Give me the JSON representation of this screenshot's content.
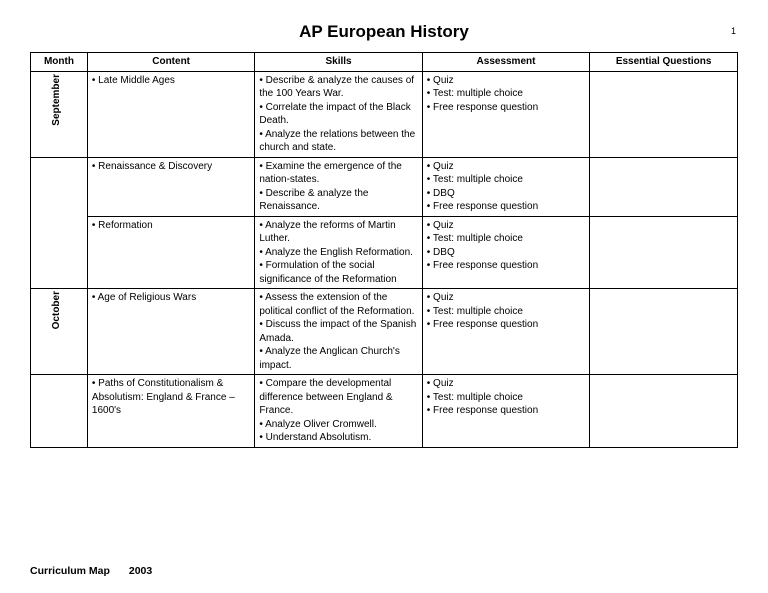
{
  "title": "AP European History",
  "page_number": "1",
  "footer_left": "Curriculum Map",
  "footer_year": "2003",
  "headers": {
    "month": "Month",
    "content": "Content",
    "skills": "Skills",
    "assessment": "Assessment",
    "essential": "Essential Questions"
  },
  "rows": [
    {
      "month": "September",
      "month_rowspan": 1,
      "content": [
        "• Late Middle Ages"
      ],
      "skills": [
        "• Describe & analyze the causes of the 100 Years War.",
        "• Correlate the impact of the Black Death.",
        "• Analyze the relations between the church and state."
      ],
      "assessment": [
        "• Quiz",
        "• Test:  multiple choice",
        "• Free response question"
      ],
      "essential": []
    },
    {
      "month": "",
      "month_rowspan": 2,
      "content": [
        "• Renaissance & Discovery"
      ],
      "skills": [
        "• Examine the emergence of the nation-states.",
        "• Describe & analyze the Renaissance."
      ],
      "assessment": [
        "• Quiz",
        "• Test:  multiple choice",
        "• DBQ",
        "• Free response question"
      ],
      "essential": []
    },
    {
      "month": "",
      "month_rowspan": 0,
      "content": [
        "• Reformation"
      ],
      "skills": [
        "• Analyze the reforms of Martin Luther.",
        "• Analyze the English Reformation.",
        "• Formulation of the social significance of the Reformation"
      ],
      "assessment": [
        "• Quiz",
        "• Test:  multiple choice",
        "• DBQ",
        "• Free response question"
      ],
      "essential": []
    },
    {
      "month": "October",
      "month_rowspan": 1,
      "content": [
        "• Age of Religious Wars"
      ],
      "skills": [
        "• Assess the extension of the political conflict of the Reformation.",
        "• Discuss the impact of the Spanish Amada.",
        "• Analyze the Anglican Church's impact."
      ],
      "assessment": [
        "• Quiz",
        "• Test:  multiple choice",
        "• Free response question"
      ],
      "essential": []
    },
    {
      "month": "",
      "month_rowspan": 1,
      "content": [
        "• Paths of Constitutionalism & Absolutism:  England & France – 1600's"
      ],
      "skills": [
        "• Compare the developmental difference between England & France.",
        "• Analyze Oliver Cromwell.",
        "• Understand Absolutism."
      ],
      "assessment": [
        "• Quiz",
        "• Test:  multiple choice",
        "• Free response question"
      ],
      "essential": []
    }
  ]
}
